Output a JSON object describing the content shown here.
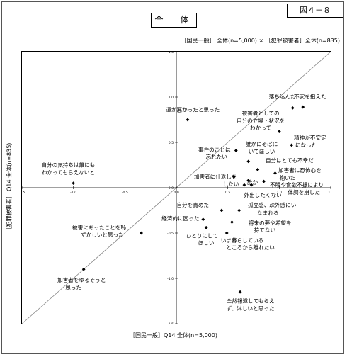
{
  "page": {
    "title": "全　体",
    "figure_label": "図４－８",
    "header": "［国民一般］ 全体(n=5,000) × ［犯罪被害者］全体(n=835)",
    "x_axis_label": "［国民一般］Q14 全体(n=5,000)",
    "y_axis_label": "［犯罪被害者］ Q14 全体(n=835)"
  },
  "chart_data": {
    "type": "scatter",
    "xlim": [
      -1.5,
      1.5
    ],
    "ylim": [
      -1.5,
      1.5
    ],
    "x_ticks": [
      "-1.5",
      "-1.0",
      "-0.5",
      "0.0",
      "0.5",
      "1.0",
      "1.5"
    ],
    "y_ticks": [
      "1.5",
      "1.0",
      "0.5",
      "0.0",
      "-0.5",
      "-1.0",
      "-1.5"
    ],
    "diagonal": true,
    "points": [
      {
        "label": "落ち込んだ",
        "x": 1.13,
        "y": 0.88
      },
      {
        "label": "不安を抱えた",
        "x": 1.23,
        "y": 0.89
      },
      {
        "label": "運が悪かったと思った",
        "x": 0.11,
        "y": 0.75
      },
      {
        "label": "被害者としての自分の立場・状況をわかって",
        "x": 1.0,
        "y": 0.62
      },
      {
        "label": "精神が不安定になった",
        "x": 1.12,
        "y": 0.47
      },
      {
        "label": "事件のことは忘れたい",
        "x": 0.58,
        "y": 0.41
      },
      {
        "label": "誰かにそばにいてほしい",
        "x": 0.7,
        "y": 0.29
      },
      {
        "label": "自分はとても不幸だ",
        "x": 0.79,
        "y": 0.2
      },
      {
        "label": "加害者に恐怖心を抱いた",
        "x": 0.96,
        "y": 0.16
      },
      {
        "label": "加害者に仕返しをしたい",
        "x": 0.56,
        "y": 0.12
      },
      {
        "label": "誰か",
        "x": 0.7,
        "y": 0.08
      },
      {
        "label": "不眠や食欲不振により体調を崩した",
        "x": 0.85,
        "y": 0.07
      },
      {
        "label": "外出したくない",
        "x": 0.66,
        "y": 0.03
      },
      {
        "label": "",
        "x": 0.73,
        "y": 0.03
      },
      {
        "label": "自分の気持ちは誰にもわかってもらえないと",
        "x": -1.0,
        "y": 0.05
      },
      {
        "label": "自分を責めた",
        "x": 0.44,
        "y": -0.25
      },
      {
        "label": "孤立感、疎外感にいなまれる",
        "x": 0.61,
        "y": -0.25
      },
      {
        "label": "経済的に困った",
        "x": 0.26,
        "y": -0.35
      },
      {
        "label": "将来の夢や希望を持てない",
        "x": 0.54,
        "y": -0.38
      },
      {
        "label": "ひとりにしてほしい",
        "x": 0.29,
        "y": -0.44
      },
      {
        "label": "被害にあったことを恥ずかしいと思った",
        "x": -0.34,
        "y": -0.5
      },
      {
        "label": "いま暮らしているところから離れたい",
        "x": 0.49,
        "y": -0.5
      },
      {
        "label": "加害者をゆるそうと思った",
        "x": -0.9,
        "y": -0.9
      },
      {
        "label": "全然報道してもらえず、淋しいと思った",
        "x": 0.62,
        "y": -1.15
      }
    ]
  },
  "labels": {
    "ochikonda": "落ち込んだ",
    "fuan": "不安を抱えた",
    "unga": "運が悪かったと思った",
    "higaisha_1": "被害者としての",
    "higaisha_2": "自分の立場・状況を",
    "higaisha_3": "わかって",
    "seishin_1": "精神が不安定",
    "seishin_2": "になった",
    "jiken_1": "事件のことは",
    "jiken_2": "忘れたい",
    "dareka_1": "誰かにそばに",
    "dareka_2": "いてほしい",
    "fukou": "自分はとても不幸だ",
    "kyoufu_1": "加害者に恐怖心を",
    "kyoufu_2": "抱いた",
    "shikaeshi_1": "加害者に仕返しを",
    "shikaeshi_2": "したい",
    "dare": "誰か",
    "fumin_1": "不眠や食欲不振により",
    "fumin_2": "体調を崩した",
    "gaishutsu": "外出したくない",
    "kimochi_1": "自分の気持ちは誰にも",
    "kimochi_2": "わかってもらえないと",
    "semeta": "自分を責めた",
    "koritsu_1": "孤立感、疎外感にい",
    "koritsu_2": "なまれる",
    "keizai": "経済的に困った",
    "shourai_1": "将来の夢や希望を",
    "shourai_2": "持てない",
    "hitori_1": "ひとりにして",
    "hitori_2": "ほしい",
    "haji_1": "被害にあったことを恥",
    "haji_2": "ずかしいと思った",
    "kurashi_1": "いま暮らしている",
    "kurashi_2": "ところから離れたい",
    "yurusu_1": "加害者をゆるそうと",
    "yurusu_2": "思った",
    "houdou_1": "全然報道してもらえ",
    "houdou_2": "ず、淋しいと思った"
  }
}
